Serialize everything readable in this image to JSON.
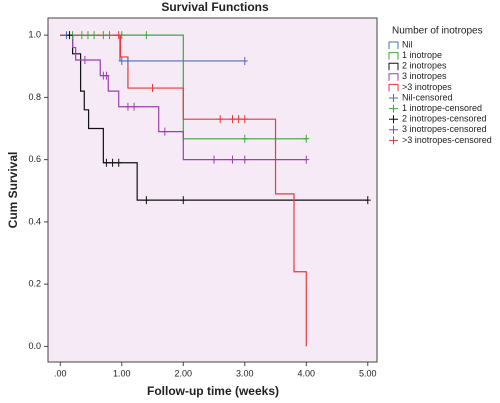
{
  "chart_data": {
    "type": "survival",
    "title": "Survival Functions",
    "x_label": "Follow-up time (weeks)",
    "y_label": "Cum Survival",
    "legend_title": "Number of inotropes",
    "legend": "right",
    "xlim": [
      -0.2,
      5.15
    ],
    "ylim": [
      -0.05,
      1.055
    ],
    "xticks": [
      {
        "value": 0,
        "label": ".00"
      },
      {
        "value": 1,
        "label": "1.00"
      },
      {
        "value": 2,
        "label": "2.00"
      },
      {
        "value": 3,
        "label": "3.00"
      },
      {
        "value": 4,
        "label": "4.00"
      },
      {
        "value": 5,
        "label": "5.00"
      }
    ],
    "yticks": [
      {
        "value": 0,
        "label": "0.0"
      },
      0.2,
      0.4,
      0.6,
      0.8,
      {
        "value": 1,
        "label": "1.0"
      }
    ],
    "background": "#f6eaf6",
    "series": [
      {
        "name": "Nil",
        "color": "#4a6fb5",
        "style": "step",
        "x": [
          0,
          0.97,
          3.0
        ],
        "values": [
          1.0,
          0.917,
          0.917
        ]
      },
      {
        "name": "1 inotrope",
        "color": "#3aa83a",
        "style": "step",
        "x": [
          0,
          2.0,
          4.0
        ],
        "values": [
          1.0,
          0.667,
          0.667
        ]
      },
      {
        "name": "2 inotropes",
        "color": "#111111",
        "style": "step",
        "x": [
          0,
          0.2,
          0.33,
          0.39,
          0.46,
          0.7,
          1.25,
          5.0
        ],
        "values": [
          1.0,
          0.94,
          0.82,
          0.76,
          0.7,
          0.59,
          0.47,
          0.47
        ]
      },
      {
        "name": "3 inotropes",
        "color": "#9b3fb0",
        "style": "step",
        "x": [
          0,
          0.2,
          0.25,
          0.65,
          0.78,
          0.95,
          1.6,
          2.0,
          4.0
        ],
        "values": [
          1.0,
          0.96,
          0.92,
          0.87,
          0.82,
          0.77,
          0.69,
          0.6,
          0.6
        ]
      },
      {
        "name": ">3 inotropes",
        "color": "#e8393b",
        "style": "step",
        "x": [
          0,
          0.98,
          1.1,
          2.0,
          3.5,
          3.8,
          4.0
        ],
        "values": [
          1.0,
          0.93,
          0.83,
          0.73,
          0.49,
          0.24,
          0.0
        ]
      },
      {
        "name": "Nil-censored",
        "color": "#4a6fb5",
        "style": "censored",
        "x": [
          0.1,
          1.0,
          1.1,
          3.0
        ],
        "values": [
          1.0,
          0.917,
          0.917,
          0.917
        ]
      },
      {
        "name": "1 inotrope-censored",
        "color": "#3aa83a",
        "style": "censored",
        "x": [
          0.2,
          0.35,
          0.45,
          0.55,
          0.7,
          0.8,
          1.0,
          1.4,
          3.0,
          4.0
        ],
        "values": [
          1.0,
          1.0,
          1.0,
          1.0,
          1.0,
          1.0,
          1.0,
          1.0,
          0.667,
          0.667
        ]
      },
      {
        "name": "2 inotropes-censored",
        "color": "#111111",
        "style": "censored",
        "x": [
          0.15,
          0.75,
          0.85,
          0.95,
          1.4,
          2.0,
          5.0
        ],
        "values": [
          1.0,
          0.59,
          0.59,
          0.59,
          0.47,
          0.47,
          0.47
        ]
      },
      {
        "name": "3 inotropes-censored",
        "color": "#9b3fb0",
        "style": "censored",
        "x": [
          0.4,
          0.7,
          0.75,
          1.1,
          1.2,
          1.7,
          2.5,
          2.8,
          3.0,
          4.0
        ],
        "values": [
          0.92,
          0.87,
          0.87,
          0.77,
          0.77,
          0.69,
          0.6,
          0.6,
          0.6,
          0.6
        ]
      },
      {
        "name": ">3 inotropes-censored",
        "color": "#e8393b",
        "style": "censored",
        "x": [
          0.95,
          1.5,
          2.6,
          2.8,
          2.9,
          3.0
        ],
        "values": [
          1.0,
          0.83,
          0.73,
          0.73,
          0.73,
          0.73
        ]
      }
    ]
  }
}
